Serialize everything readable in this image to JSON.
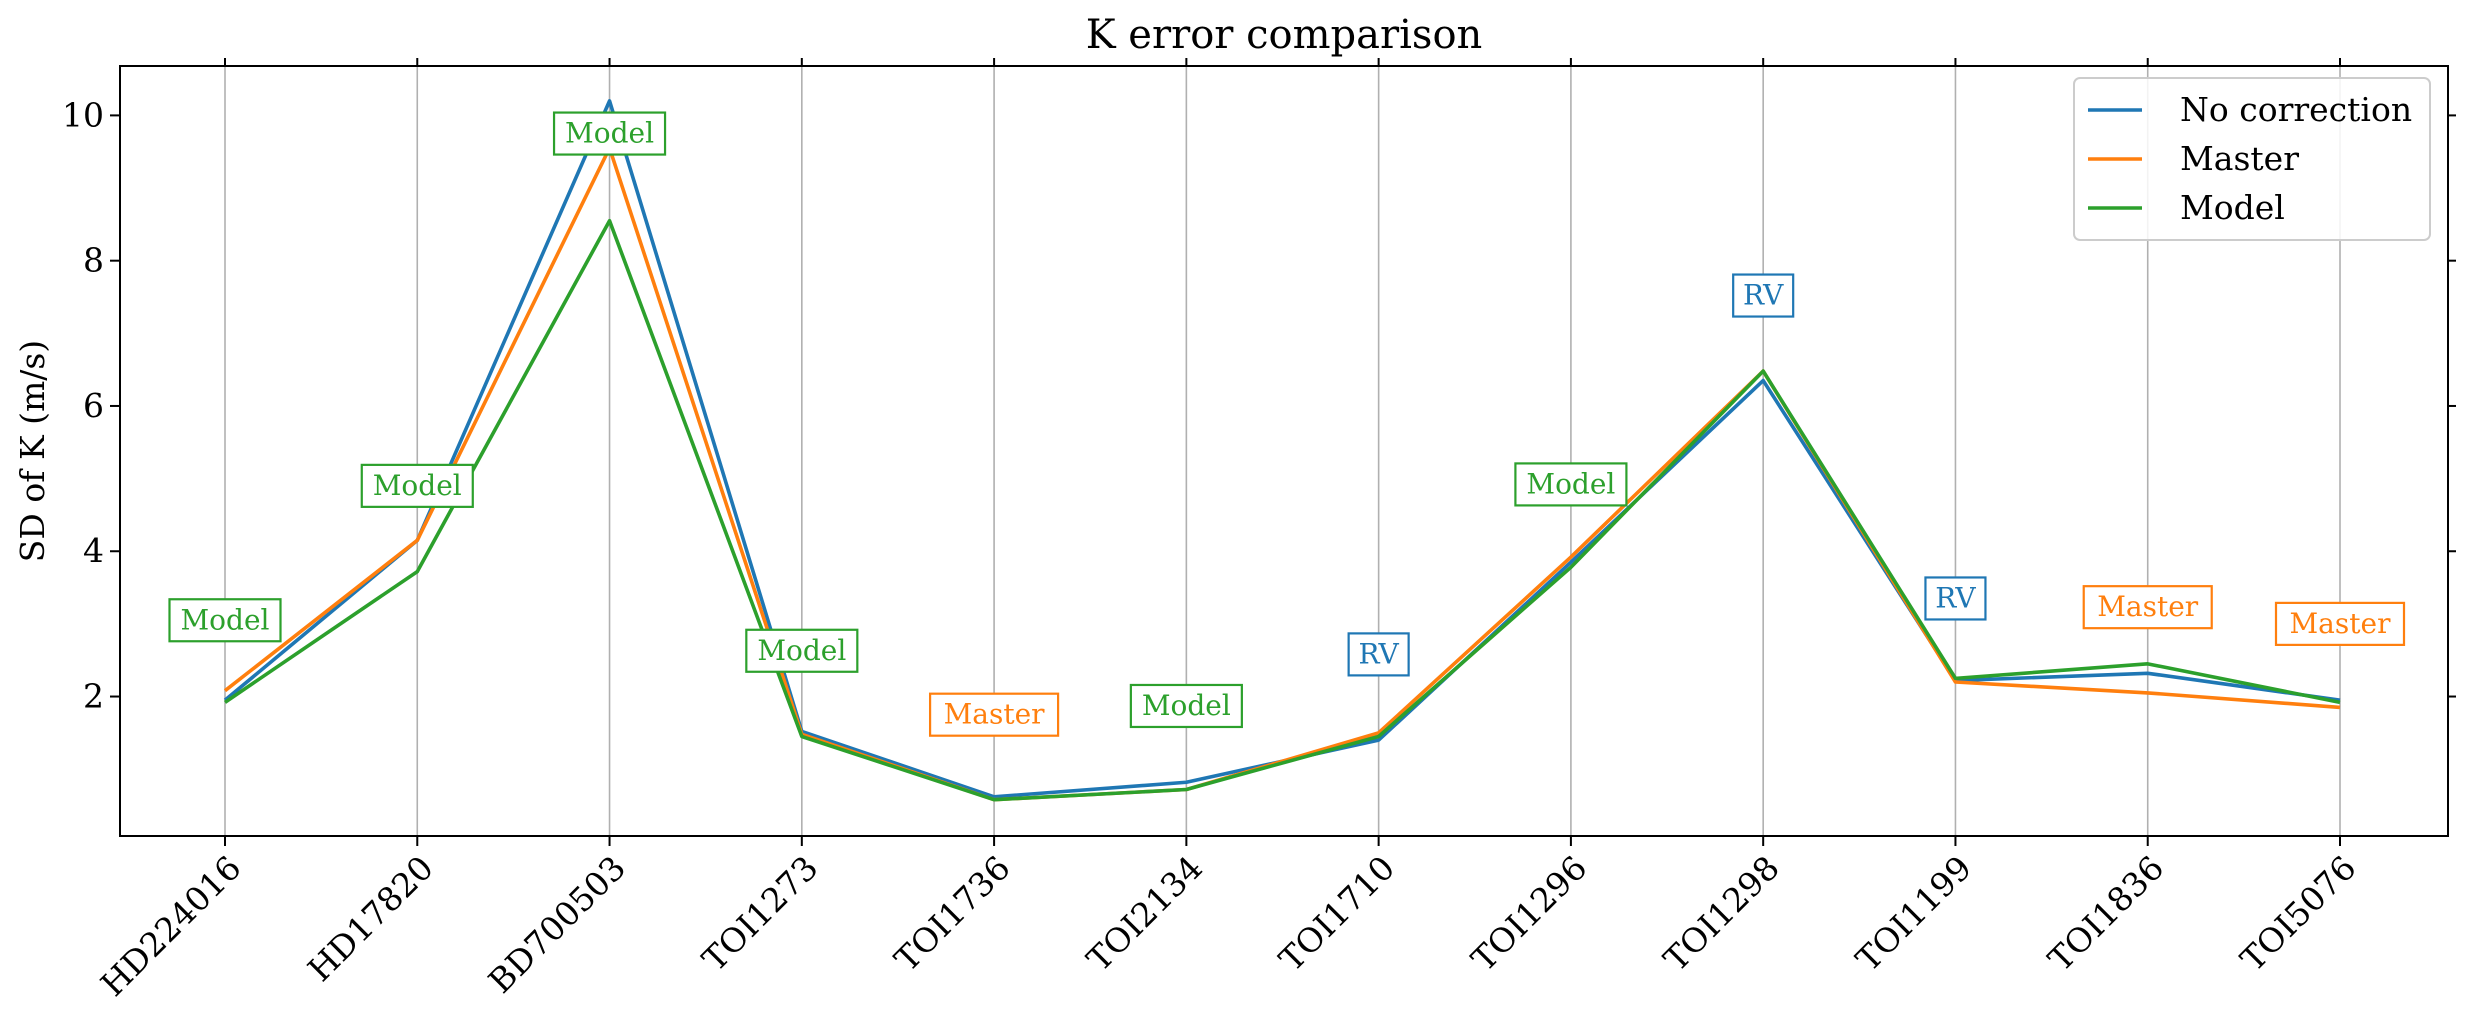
{
  "chart_data": {
    "type": "line",
    "title": "K error comparison",
    "xlabel": "",
    "ylabel": "SD of K (m/s)",
    "categories": [
      "HD224016",
      "HD17820",
      "BD700503",
      "TOI1273",
      "TOI1736",
      "TOI2134",
      "TOI1710",
      "TOI1296",
      "TOI1298",
      "TOI1199",
      "TOI1836",
      "TOI5076"
    ],
    "ylim": [
      0.08,
      10.68
    ],
    "yticks": [
      2,
      4,
      6,
      8,
      10
    ],
    "grid": "vertical",
    "legend_position": "top-right",
    "series": [
      {
        "name": "No correction",
        "color": "#1f77b4",
        "values": [
          1.95,
          4.15,
          10.2,
          1.52,
          0.62,
          0.82,
          1.4,
          3.85,
          6.35,
          2.22,
          2.32,
          1.95
        ]
      },
      {
        "name": "Master",
        "color": "#ff7f0e",
        "values": [
          2.08,
          4.15,
          9.55,
          1.48,
          0.58,
          0.72,
          1.5,
          3.92,
          6.48,
          2.2,
          2.05,
          1.85
        ]
      },
      {
        "name": "Model",
        "color": "#2ca02c",
        "values": [
          1.92,
          3.72,
          8.55,
          1.45,
          0.58,
          0.72,
          1.45,
          3.78,
          6.48,
          2.25,
          2.45,
          1.92
        ]
      }
    ],
    "annotations": [
      {
        "category": "HD224016",
        "y": 3.05,
        "text": "Model",
        "color": "#2ca02c"
      },
      {
        "category": "HD17820",
        "y": 4.9,
        "text": "Model",
        "color": "#2ca02c"
      },
      {
        "category": "BD700503",
        "y": 9.75,
        "text": "Model",
        "color": "#2ca02c"
      },
      {
        "category": "TOI1273",
        "y": 2.63,
        "text": "Model",
        "color": "#2ca02c"
      },
      {
        "category": "TOI1736",
        "y": 1.75,
        "text": "Master",
        "color": "#ff7f0e"
      },
      {
        "category": "TOI2134",
        "y": 1.87,
        "text": "Model",
        "color": "#2ca02c"
      },
      {
        "category": "TOI1710",
        "y": 2.58,
        "text": "RV",
        "color": "#1f77b4"
      },
      {
        "category": "TOI1296",
        "y": 4.92,
        "text": "Model",
        "color": "#2ca02c"
      },
      {
        "category": "TOI1298",
        "y": 7.52,
        "text": "RV",
        "color": "#1f77b4"
      },
      {
        "category": "TOI1199",
        "y": 3.35,
        "text": "RV",
        "color": "#1f77b4"
      },
      {
        "category": "TOI1836",
        "y": 3.23,
        "text": "Master",
        "color": "#ff7f0e"
      },
      {
        "category": "TOI5076",
        "y": 3.0,
        "text": "Master",
        "color": "#ff7f0e"
      }
    ]
  }
}
